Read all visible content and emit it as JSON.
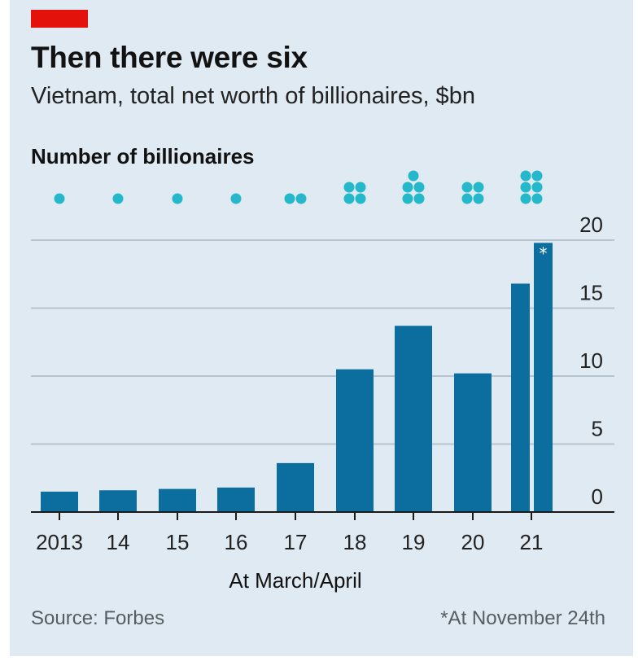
{
  "header": {
    "title": "Then there were six",
    "subtitle": "Vietnam, total net worth of billionaires, $bn",
    "count_heading": "Number of billionaires"
  },
  "footer": {
    "source": "Source: Forbes",
    "footnote": "*At November 24th"
  },
  "colors": {
    "background": "#dfeaf2",
    "bar": "#0b6e9e",
    "dot": "#25b8cb",
    "grid": "#b5c4cf",
    "brand_tag": "#e3120b"
  },
  "chart_data": {
    "type": "bar",
    "title": "Then there were six",
    "subtitle": "Vietnam, total net worth of billionaires, $bn",
    "categories": [
      "2013",
      "14",
      "15",
      "16",
      "17",
      "18",
      "19",
      "20",
      "21",
      "21*"
    ],
    "tick_labels": [
      "2013",
      "14",
      "15",
      "16",
      "17",
      "18",
      "19",
      "20",
      "21"
    ],
    "values": [
      1.5,
      1.6,
      1.7,
      1.8,
      3.6,
      10.5,
      13.7,
      10.2,
      16.8,
      19.8
    ],
    "billionaire_counts": [
      1,
      1,
      1,
      1,
      2,
      4,
      5,
      4,
      6
    ],
    "star_label": "*",
    "xlabel": "At March/April",
    "ylabel": "",
    "ylim": [
      0,
      20
    ],
    "yticks": [
      "0",
      "5",
      "10",
      "15",
      "20"
    ],
    "ytick_values": [
      0,
      5,
      10,
      15,
      20
    ],
    "grid": true,
    "y_axis_side": "right"
  }
}
